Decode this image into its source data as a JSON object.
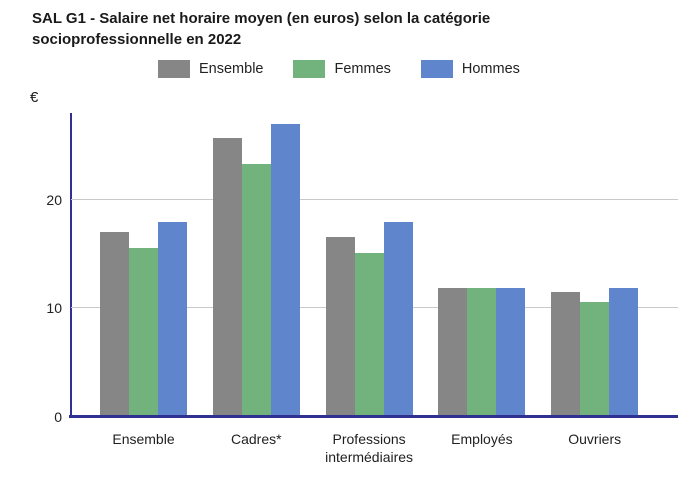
{
  "title": "SAL G1 - Salaire net horaire moyen (en euros) selon la catégorie socioprofessionnelle en 2022",
  "y_axis_unit": "€",
  "chart_data": {
    "type": "bar",
    "title": "SAL G1 - Salaire net horaire moyen (en euros) selon la catégorie socioprofessionnelle en 2022",
    "categories": [
      "Ensemble",
      "Cadres*",
      "Professions intermédiaires",
      "Employés",
      "Ouvriers"
    ],
    "series": [
      {
        "name": "Ensemble",
        "color": "#868686",
        "values": [
          16.9,
          25.5,
          16.4,
          11.7,
          11.3
        ]
      },
      {
        "name": "Femmes",
        "color": "#72b27c",
        "values": [
          15.4,
          23.1,
          14.9,
          11.7,
          10.4
        ]
      },
      {
        "name": "Hommes",
        "color": "#5f86cd",
        "values": [
          17.8,
          26.8,
          17.8,
          11.7,
          11.7
        ]
      }
    ],
    "xlabel": "",
    "ylabel": "€",
    "ylim": [
      0,
      28
    ],
    "yticks": [
      0,
      10,
      20
    ],
    "grid": true,
    "legend_position": "top",
    "axis_color": "#2e3192",
    "gridline_color": "#c9c9c9"
  }
}
